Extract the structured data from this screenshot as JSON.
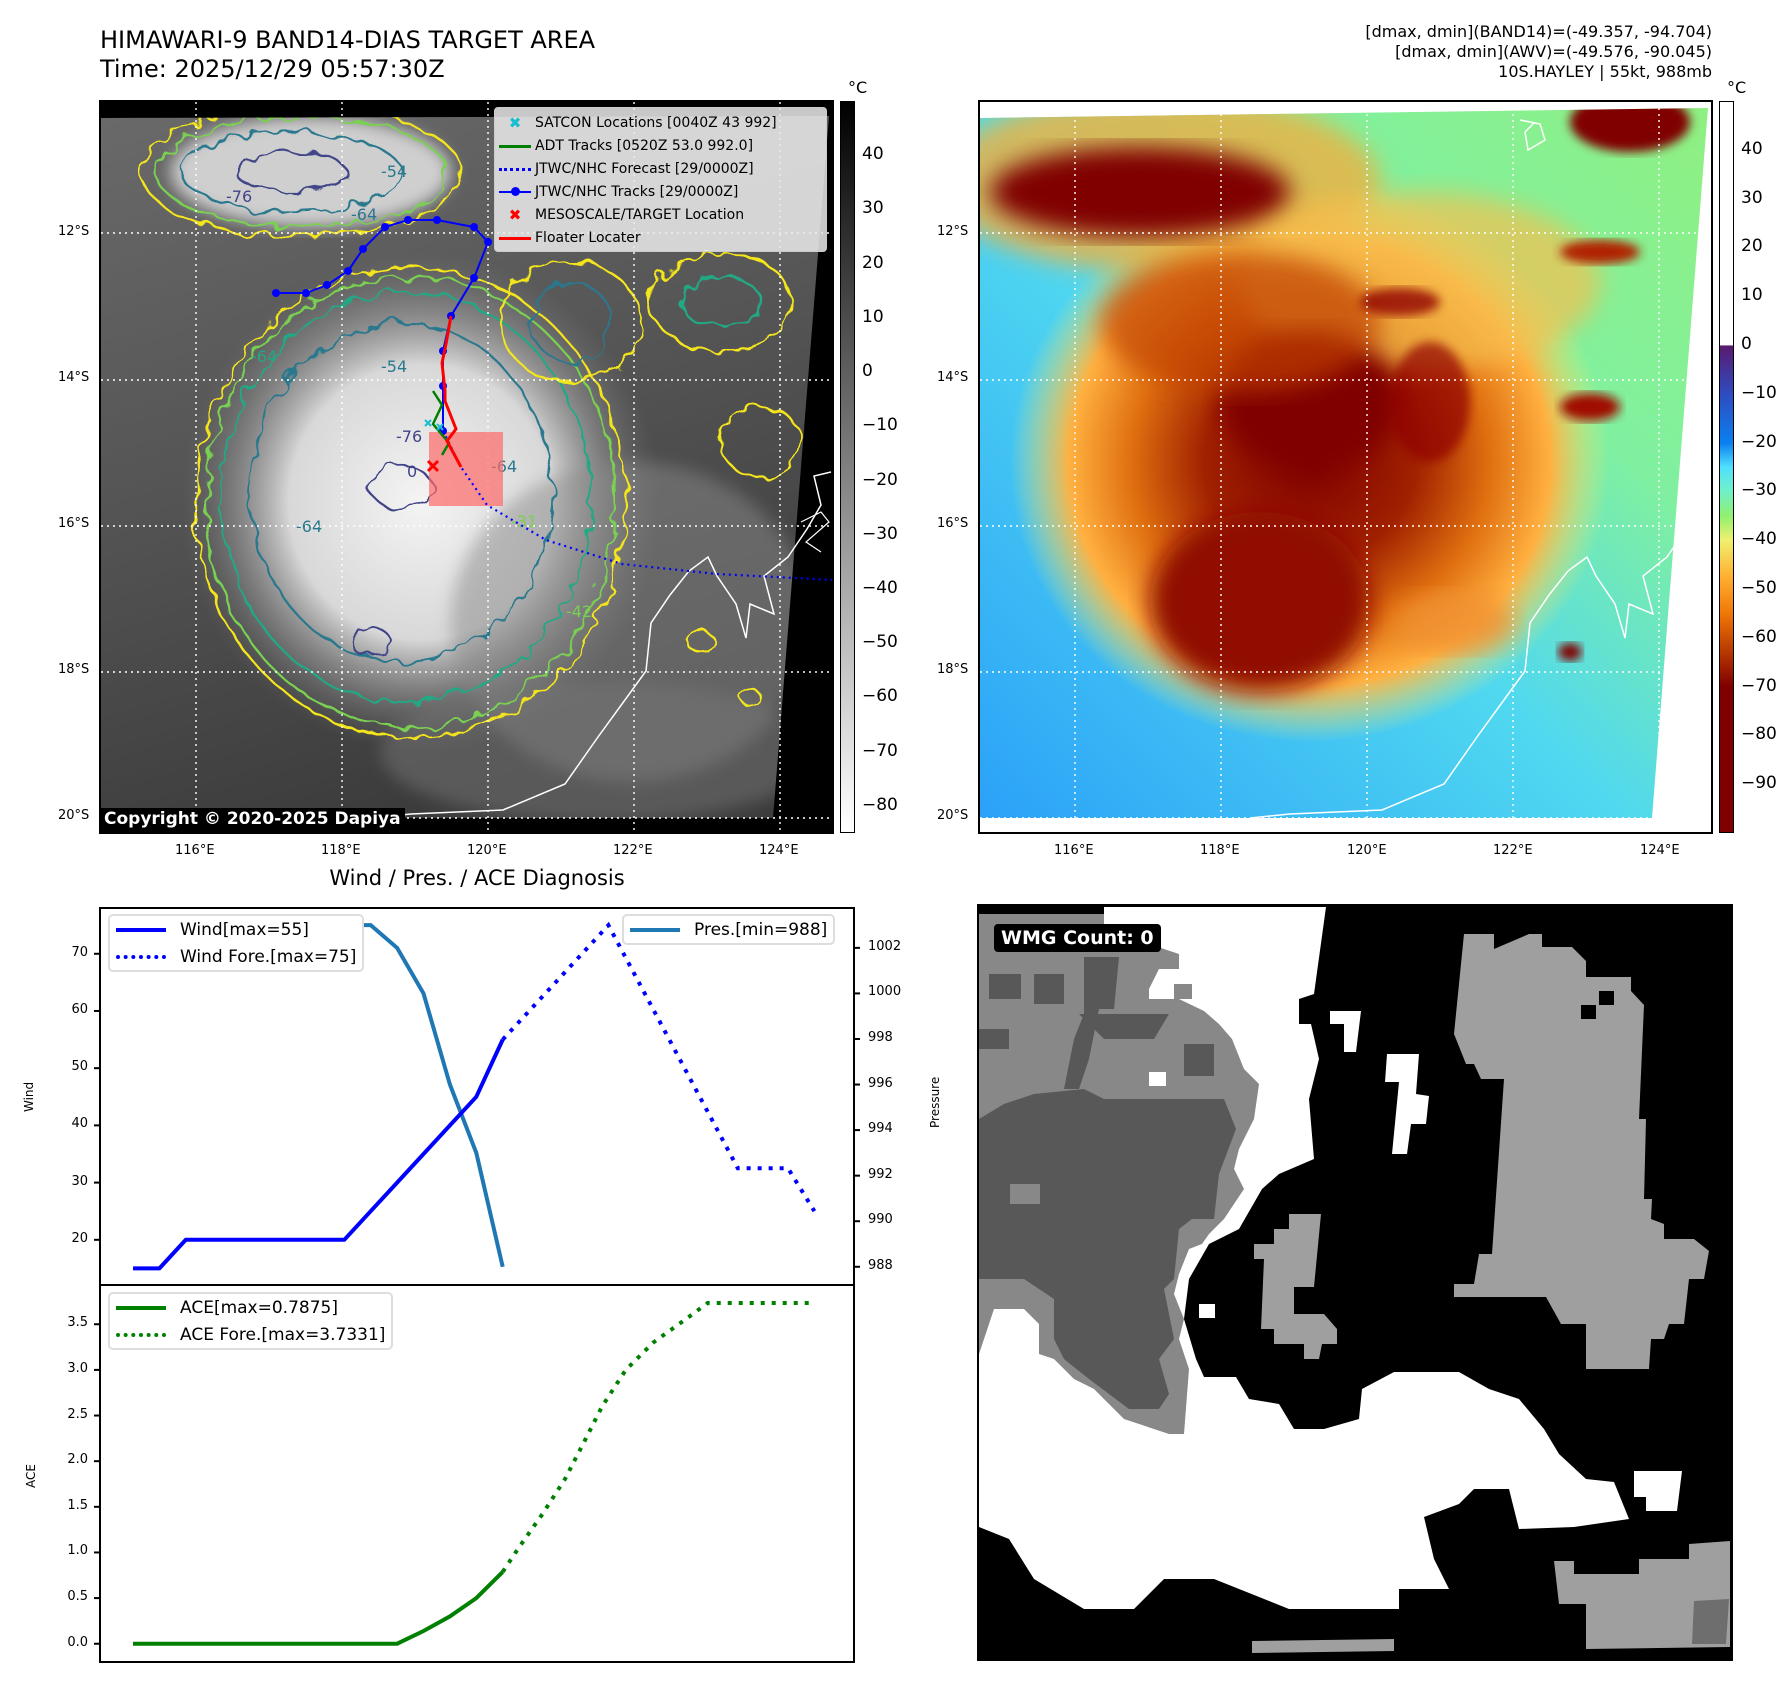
{
  "header": {
    "title_line1": "HIMAWARI-9 BAND14-DIAS TARGET AREA",
    "title_line2": "Time: 2025/12/29 05:57:30Z",
    "stats_line1": "[dmax, dmin](BAND14)=(-49.357, -94.704)",
    "stats_line2": "[dmax, dmin](AWV)=(-49.576, -90.045)",
    "stats_line3": "10S.HAYLEY | 55kt, 988mb"
  },
  "map": {
    "lat_labels": [
      "12°S",
      "14°S",
      "16°S",
      "18°S",
      "20°S"
    ],
    "lon_labels": [
      "116°E",
      "118°E",
      "120°E",
      "122°E",
      "124°E"
    ],
    "copyright": "Copyright © 2020-2025 Dapiya",
    "contour_labels": [
      "-76",
      "-64",
      "-54",
      "-64",
      "-76",
      "-54",
      "-64",
      "-64",
      "-31",
      "-42",
      "0"
    ],
    "legend": [
      {
        "label": "SATCON Locations [0040Z 43 992]",
        "color": "#17becf",
        "symbol": "x"
      },
      {
        "label": "ADT Tracks [0520Z 53.0 992.0]",
        "color": "#008000",
        "symbol": "line"
      },
      {
        "label": "JTWC/NHC Forecast [29/0000Z]",
        "color": "#0000ff",
        "symbol": "dotted"
      },
      {
        "label": "JTWC/NHC Tracks [29/0000Z]",
        "color": "#0000ff",
        "symbol": "line-dot"
      },
      {
        "label": "MESOSCALE/TARGET Location",
        "color": "#ff0000",
        "symbol": "x"
      },
      {
        "label": "Floater Locater",
        "color": "#ff0000",
        "symbol": "line"
      }
    ]
  },
  "colorbar_left": {
    "unit": "°C",
    "ticks": [
      "40",
      "30",
      "20",
      "10",
      "0",
      "−10",
      "−20",
      "−30",
      "−40",
      "−50",
      "−60",
      "−70",
      "−80"
    ],
    "range": [
      -85,
      50
    ]
  },
  "colorbar_right": {
    "unit": "°C",
    "ticks": [
      "40",
      "30",
      "20",
      "10",
      "0",
      "−10",
      "−20",
      "−30",
      "−40",
      "−50",
      "−60",
      "−70",
      "−80",
      "−90"
    ],
    "range": [
      -100,
      50
    ]
  },
  "wmg": {
    "label": "WMG Count: 0"
  },
  "chart_data": [
    {
      "type": "line",
      "title": "Wind / Pres. / ACE Diagnosis",
      "ylabel": "Wind",
      "y2label": "Pressure",
      "xlim": [
        -1.25,
        27.3
      ],
      "ylim": [
        12.1,
        78
      ],
      "y2lim": [
        987.2,
        1003.75
      ],
      "yticks": [
        20,
        30,
        40,
        50,
        60,
        70
      ],
      "y2ticks": [
        988,
        990,
        992,
        994,
        996,
        998,
        1000,
        1002
      ],
      "series": [
        {
          "name": "Wind[max=55]",
          "color": "#0000ff",
          "style": "solid",
          "axis": "left",
          "x": [
            0,
            1,
            2,
            3,
            4,
            5,
            6,
            7,
            8,
            9,
            10,
            11,
            12,
            13,
            14
          ],
          "values": [
            15,
            15,
            20,
            20,
            20,
            20,
            20,
            20,
            20,
            25,
            30,
            35,
            40,
            45,
            55
          ]
        },
        {
          "name": "Wind Fore.[max=75]",
          "color": "#0000ff",
          "style": "dotted",
          "axis": "left",
          "x": [
            14,
            18,
            22.9,
            24.8,
            25.8
          ],
          "values": [
            55,
            75,
            32.5,
            32.5,
            25
          ]
        },
        {
          "name": "Pres.[min=988]",
          "color": "#1f77b4",
          "style": "solid",
          "axis": "right",
          "x": [
            0,
            1,
            2,
            3,
            4,
            5,
            6,
            7,
            8,
            9,
            10,
            11,
            12,
            13,
            14
          ],
          "values": [
            1003,
            1003,
            1003,
            1003,
            1003,
            1003,
            1003,
            1003,
            1003,
            1003,
            1002,
            1000,
            996,
            993,
            988
          ]
        }
      ]
    },
    {
      "type": "line",
      "ylabel": "ACE",
      "xlim": [
        -1.25,
        27.3
      ],
      "ylim": [
        -0.2,
        3.93
      ],
      "yticks": [
        "0.0",
        "0.5",
        "1.0",
        "1.5",
        "2.0",
        "2.5",
        "3.0",
        "3.5"
      ],
      "series": [
        {
          "name": "ACE[max=0.7875]",
          "color": "#008000",
          "style": "solid",
          "x": [
            0,
            1,
            2,
            3,
            4,
            5,
            6,
            7,
            8,
            9,
            10,
            11,
            12,
            13,
            14
          ],
          "values": [
            0,
            0,
            0,
            0,
            0,
            0,
            0,
            0,
            0,
            0,
            0,
            0.14,
            0.3,
            0.5,
            0.7875
          ]
        },
        {
          "name": "ACE Fore.[max=3.7331]",
          "color": "#008000",
          "style": "dotted",
          "x": [
            14,
            14.6,
            15.5,
            16.35,
            17.06,
            17.76,
            18.66,
            19.7,
            20.9,
            21.76,
            25.7
          ],
          "values": [
            0.7875,
            1.05,
            1.42,
            1.8,
            2.2,
            2.6,
            3.0,
            3.3,
            3.55,
            3.7331,
            3.7331
          ]
        }
      ]
    }
  ]
}
